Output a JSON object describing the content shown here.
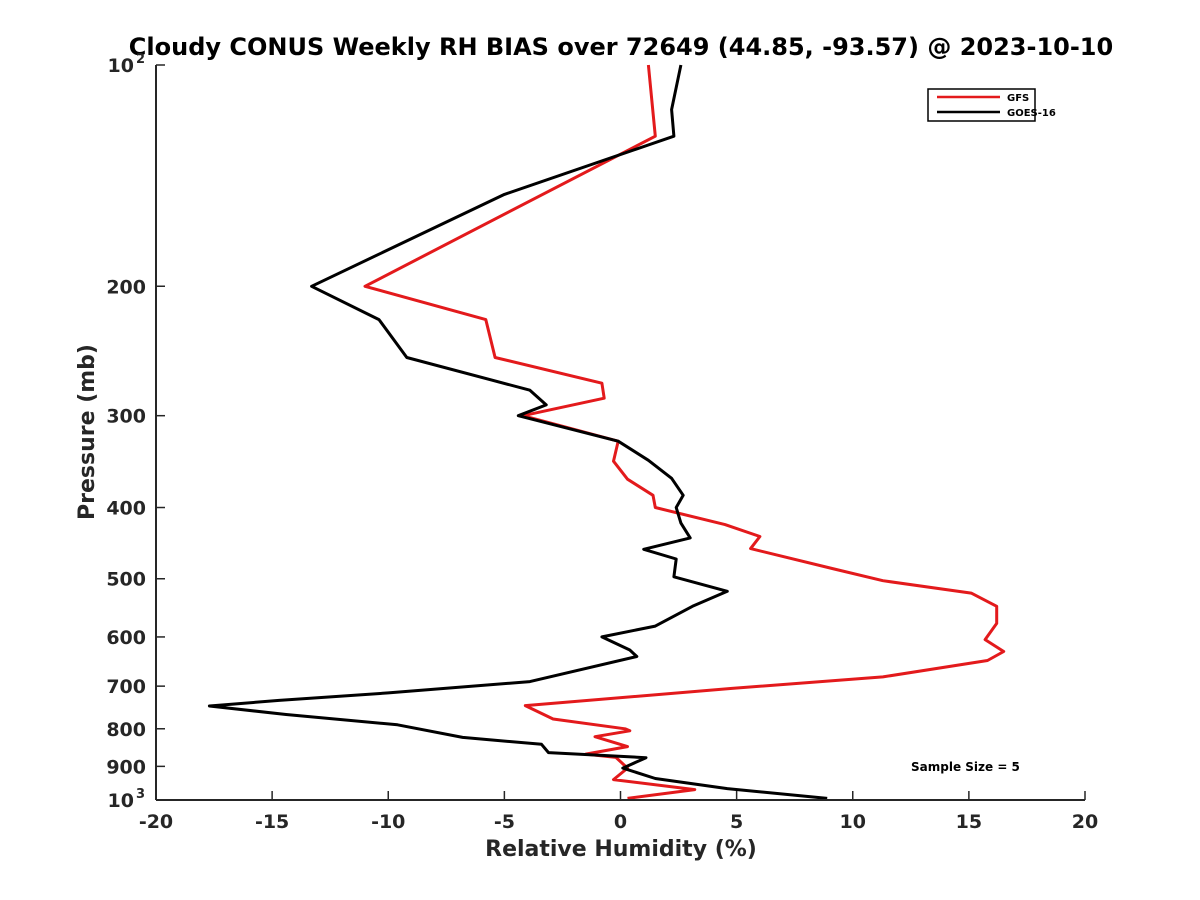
{
  "chart_data": {
    "type": "line",
    "title": "Cloudy CONUS Weekly RH BIAS over 72649 (44.85, -93.57) @ 2023-10-10",
    "xlabel": "Relative Humidity (%)",
    "ylabel": "Pressure (mb)",
    "xlim": [
      -20,
      20
    ],
    "ylim": [
      1000,
      100
    ],
    "yscale": "log",
    "y_reversed": true,
    "grid": false,
    "legend_position": "top-right",
    "x_ticks": [
      "-20",
      "-15",
      "-10",
      "-5",
      "0",
      "5",
      "10",
      "15",
      "20"
    ],
    "y_ticks": [
      {
        "value": 100,
        "base": "10",
        "exp": "2"
      },
      {
        "value": 200,
        "base": "200",
        "exp": ""
      },
      {
        "value": 300,
        "base": "300",
        "exp": ""
      },
      {
        "value": 400,
        "base": "400",
        "exp": ""
      },
      {
        "value": 500,
        "base": "500",
        "exp": ""
      },
      {
        "value": 600,
        "base": "600",
        "exp": ""
      },
      {
        "value": 700,
        "base": "700",
        "exp": ""
      },
      {
        "value": 800,
        "base": "800",
        "exp": ""
      },
      {
        "value": 900,
        "base": "900",
        "exp": ""
      },
      {
        "value": 1000,
        "base": "10",
        "exp": "3"
      }
    ],
    "annotation": "Sample Size = 5",
    "series": [
      {
        "name": "GFS",
        "color": "#e31a1c",
        "points": [
          [
            1.2,
            100
          ],
          [
            1.5,
            125
          ],
          [
            -11.0,
            200
          ],
          [
            -5.8,
            222
          ],
          [
            -5.4,
            250
          ],
          [
            -0.8,
            271
          ],
          [
            -0.7,
            284
          ],
          [
            -4.2,
            300
          ],
          [
            -0.1,
            325
          ],
          [
            -0.3,
            346
          ],
          [
            0.3,
            366
          ],
          [
            1.4,
            385
          ],
          [
            1.5,
            400
          ],
          [
            4.5,
            422
          ],
          [
            6.0,
            438
          ],
          [
            5.6,
            455
          ],
          [
            9.2,
            485
          ],
          [
            11.3,
            503
          ],
          [
            15.1,
            523
          ],
          [
            16.2,
            545
          ],
          [
            16.2,
            575
          ],
          [
            15.7,
            605
          ],
          [
            16.5,
            628
          ],
          [
            15.8,
            646
          ],
          [
            11.3,
            680
          ],
          [
            4.8,
            705
          ],
          [
            -4.1,
            744
          ],
          [
            -2.9,
            776
          ],
          [
            0.2,
            800
          ],
          [
            0.4,
            805
          ],
          [
            -1.1,
            820
          ],
          [
            0.3,
            846
          ],
          [
            -1.5,
            866
          ],
          [
            -0.2,
            875
          ],
          [
            0.3,
            905
          ],
          [
            -0.3,
            938
          ],
          [
            3.2,
            968
          ],
          [
            0.3,
            995
          ]
        ]
      },
      {
        "name": "GOES-16",
        "color": "#000000",
        "points": [
          [
            2.6,
            100
          ],
          [
            2.2,
            115
          ],
          [
            2.3,
            125
          ],
          [
            -5.0,
            150
          ],
          [
            -13.3,
            200
          ],
          [
            -10.4,
            222
          ],
          [
            -9.2,
            250
          ],
          [
            -3.9,
            277
          ],
          [
            -3.2,
            290
          ],
          [
            -4.4,
            300
          ],
          [
            -0.1,
            325
          ],
          [
            1.2,
            345
          ],
          [
            2.2,
            365
          ],
          [
            2.7,
            385
          ],
          [
            2.4,
            400
          ],
          [
            2.6,
            420
          ],
          [
            3.0,
            440
          ],
          [
            1.0,
            456
          ],
          [
            2.4,
            470
          ],
          [
            2.3,
            497
          ],
          [
            4.6,
            520
          ],
          [
            3.1,
            545
          ],
          [
            1.5,
            580
          ],
          [
            -0.8,
            600
          ],
          [
            0.4,
            625
          ],
          [
            0.7,
            638
          ],
          [
            -3.9,
            690
          ],
          [
            -10.0,
            715
          ],
          [
            -14.7,
            732
          ],
          [
            -17.7,
            745
          ],
          [
            -14.4,
            765
          ],
          [
            -9.6,
            790
          ],
          [
            -6.8,
            822
          ],
          [
            -3.4,
            840
          ],
          [
            -3.1,
            862
          ],
          [
            1.1,
            876
          ],
          [
            0.1,
            905
          ],
          [
            1.5,
            935
          ],
          [
            4.6,
            965
          ],
          [
            8.9,
            995
          ]
        ]
      }
    ]
  }
}
